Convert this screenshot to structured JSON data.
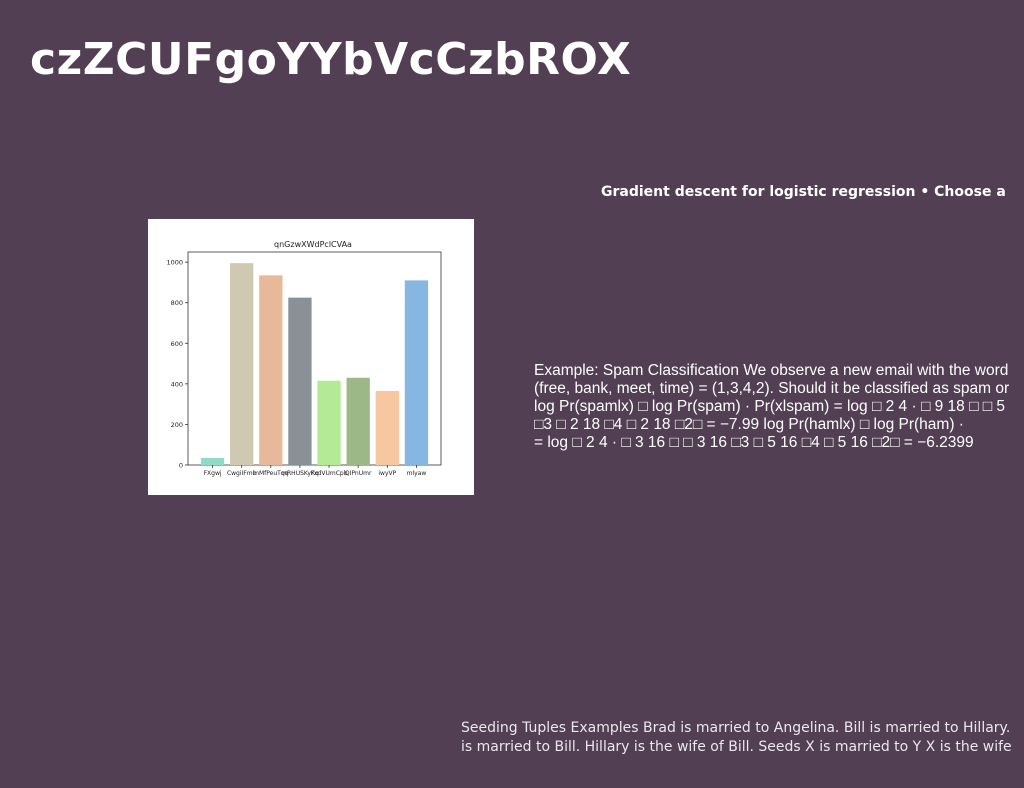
{
  "slide": {
    "title": "czZCUFgoYYbVcCzbROX",
    "subtitle": "Gradient descent for logistic regression • Choose a",
    "paragraph_lines": [
      "Example: Spam Classification We observe a new email with the word",
      "(free, bank, meet, time) = (1,3,4,2). Should it be classified as spam or",
      "log Pr(spamlx) □ log Pr(spam) · Pr(xlspam) = log □ 2 4 · □ 9 18 □ □ 5",
      "□3 □ 2 18 □4 □ 2 18 □2□ = −7.99 log Pr(hamlx) □ log Pr(ham) ·",
      "= log □ 2 4 · □ 3 16 □ □ 3 16 □3 □ 5 16 □4 □ 5 16 □2□ = −6.2399"
    ],
    "footer_lines": [
      "Seeding Tuples Examples Brad is married to Angelina. Bill is married to Hillary.",
      "is married to Bill. Hillary is the wife of Bill. Seeds X is married to Y X is the wife"
    ]
  },
  "chart_data": {
    "type": "bar",
    "title": "qnGzwXWdPclCVAa",
    "categories": [
      "FXgwj",
      "CwgiIFmb",
      "mMfPeuTqq",
      "mRHUSKyKq",
      "FxdVUmCpb",
      "QIPnUmr",
      "iwyVP",
      "mIyaw"
    ],
    "values": [
      35,
      995,
      935,
      825,
      415,
      430,
      365,
      910
    ],
    "colors": [
      "#8fdbc8",
      "#d0c9b2",
      "#e8b89a",
      "#8a9196",
      "#b4e996",
      "#9bb886",
      "#f6c7a0",
      "#86b7e3"
    ],
    "ylim": [
      0,
      1050
    ],
    "yticks": [
      0,
      200,
      400,
      600,
      800,
      1000
    ],
    "xlabel": "",
    "ylabel": "",
    "grid": false
  }
}
